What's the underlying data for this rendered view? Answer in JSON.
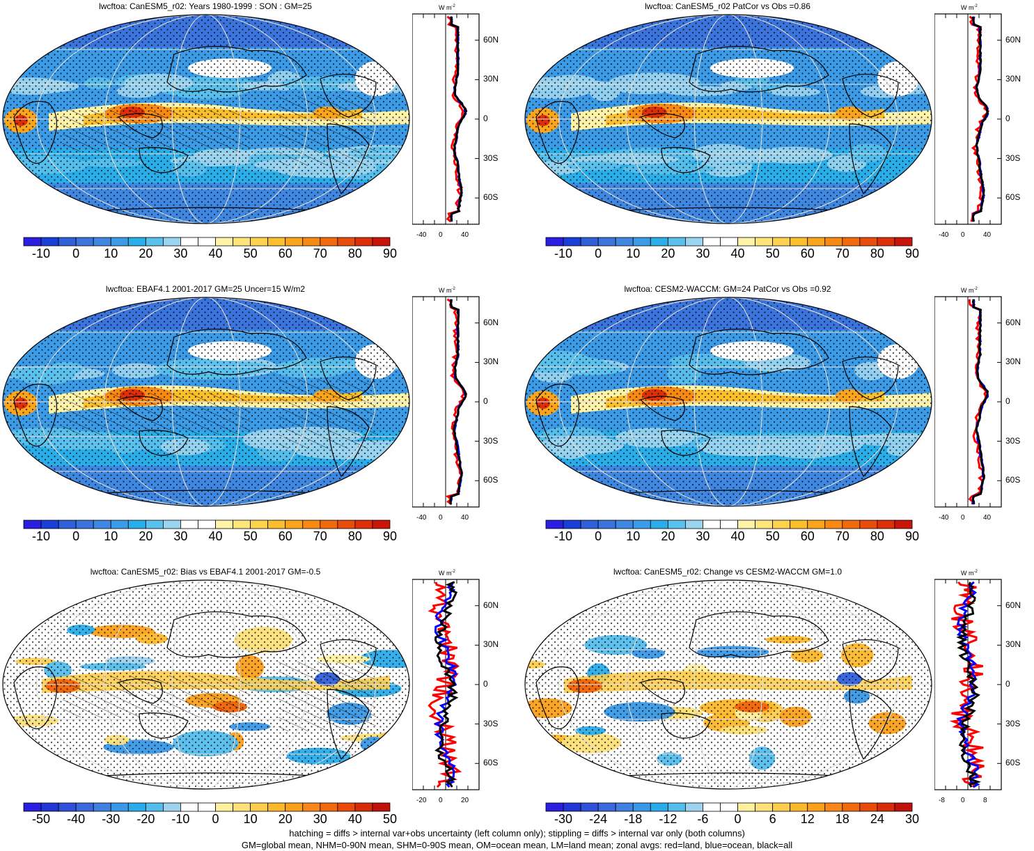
{
  "panels": [
    {
      "id": "p1",
      "title": "lwcftoa: CanESM5_r02: Years 1980-1999 : SON : GM=25",
      "colorbar": {
        "labels": [
          "-10",
          "0",
          "10",
          "20",
          "30",
          "40",
          "50",
          "60",
          "70",
          "80",
          "90"
        ],
        "type": "full"
      },
      "zonal": {
        "unit_w": "W",
        "unit_m": "m",
        "xticks": [
          "-40",
          "0",
          "40"
        ],
        "xlim": [
          -60,
          60
        ],
        "yticks": [
          "60N",
          "30N",
          "0",
          "30S",
          "60S"
        ]
      }
    },
    {
      "id": "p2",
      "title": "lwcftoa: CanESM5_r02 PatCor vs Obs =0.86",
      "colorbar": {
        "labels": [
          "-10",
          "0",
          "10",
          "20",
          "30",
          "40",
          "50",
          "60",
          "70",
          "80",
          "90"
        ],
        "type": "full"
      },
      "zonal": {
        "unit_w": "W",
        "unit_m": "m",
        "xticks": [
          "-40",
          "0",
          "40"
        ],
        "xlim": [
          -60,
          60
        ],
        "yticks": [
          "60N",
          "30N",
          "0",
          "30S",
          "60S"
        ]
      }
    },
    {
      "id": "p3",
      "title": "lwcftoa: EBAF4.1 2001-2017 GM=25 Uncer=15 W/m2",
      "colorbar": {
        "labels": [
          "-10",
          "0",
          "10",
          "20",
          "30",
          "40",
          "50",
          "60",
          "70",
          "80",
          "90"
        ],
        "type": "full"
      },
      "zonal": {
        "unit_w": "W",
        "unit_m": "m",
        "xticks": [
          "-40",
          "0",
          "40"
        ],
        "xlim": [
          -60,
          60
        ],
        "yticks": [
          "60N",
          "30N",
          "0",
          "30S",
          "60S"
        ]
      }
    },
    {
      "id": "p4",
      "title": "lwcftoa: CESM2-WACCM: GM=24 PatCor vs Obs =0.92",
      "colorbar": {
        "labels": [
          "-10",
          "0",
          "10",
          "20",
          "30",
          "40",
          "50",
          "60",
          "70",
          "80",
          "90"
        ],
        "type": "full"
      },
      "zonal": {
        "unit_w": "W",
        "unit_m": "m",
        "xticks": [
          "-40",
          "0",
          "40"
        ],
        "xlim": [
          -60,
          60
        ],
        "yticks": [
          "60N",
          "30N",
          "0",
          "30S",
          "60S"
        ]
      }
    },
    {
      "id": "p5",
      "title": "lwcftoa: CanESM5_r02: Bias vs EBAF4.1 2001-2017  GM=-0.5",
      "colorbar": {
        "labels": [
          "-50",
          "-40",
          "-30",
          "-20",
          "-10",
          "0",
          "10",
          "20",
          "30",
          "40",
          "50"
        ],
        "type": "diff"
      },
      "zonal": {
        "unit_w": "W",
        "unit_m": "m",
        "xticks": [
          "-20",
          "0",
          "20"
        ],
        "xlim": [
          -25,
          25
        ],
        "yticks": [
          "60N",
          "30N",
          "0",
          "30S",
          "60S"
        ]
      }
    },
    {
      "id": "p6",
      "title": "lwcftoa: CanESM5_r02: Change vs CESM2-WACCM GM=1.0",
      "colorbar": {
        "labels": [
          "-30",
          "-24",
          "-18",
          "-12",
          "-6",
          "0",
          "6",
          "12",
          "18",
          "24",
          "30"
        ],
        "type": "diff"
      },
      "zonal": {
        "unit_w": "W",
        "unit_m": "m",
        "xticks": [
          "-8",
          "0",
          "8"
        ],
        "xlim": [
          -10,
          10
        ],
        "yticks": [
          "60N",
          "30N",
          "0",
          "30S",
          "60S"
        ]
      }
    }
  ],
  "colors": {
    "full_scale": [
      "#2a1ee0",
      "#1a3fd8",
      "#2f5fd9",
      "#3a74dc",
      "#3f87e0",
      "#3c9be6",
      "#2aaeea",
      "#5ac0ec",
      "#9bd4f0",
      "#ffffff",
      "#ffffff",
      "#fff3a8",
      "#fde57a",
      "#fdd24f",
      "#fcbf2c",
      "#fba51c",
      "#f88a14",
      "#f26a0e",
      "#e94d0c",
      "#dd2f0a",
      "#c9140a"
    ],
    "diff_scale": [
      "#2a1ee0",
      "#2236d8",
      "#3050da",
      "#3b68dc",
      "#3f80e0",
      "#3a98e6",
      "#2aacea",
      "#55bdec",
      "#9dd2f0",
      "#ffffff",
      "#ffffff",
      "#fff0a0",
      "#fde07a",
      "#fdcd50",
      "#fcb82c",
      "#fba01c",
      "#f8861a",
      "#f26a10",
      "#e94a0c",
      "#d72c0a",
      "#c0120a"
    ],
    "land": "red",
    "ocean": "blue",
    "all": "black"
  },
  "footer": [
    "hatching = diffs > internal var+obs uncertainty (left column only); stippling = diffs > internal var only (both columns)",
    "GM=global mean, NHM=0-90N mean, SHM=0-90S mean, OM=ocean mean, LM=land mean; zonal avgs: red=land, blue=ocean, black=all"
  ]
}
